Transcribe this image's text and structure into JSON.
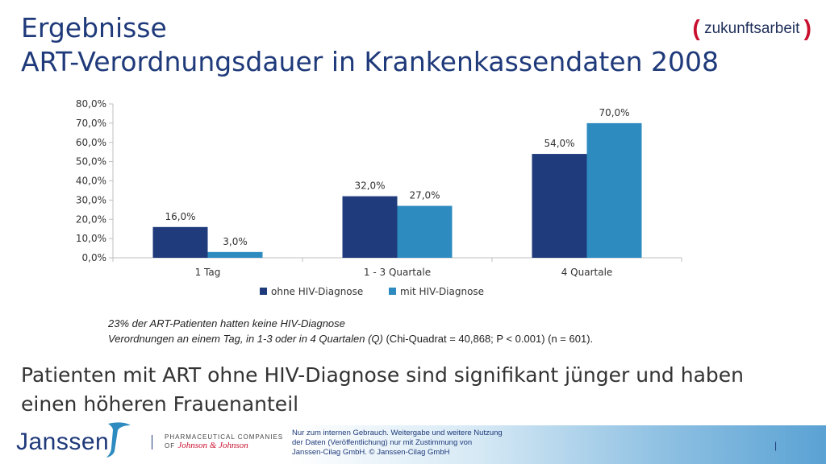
{
  "header": {
    "title_line1": "Ergebnisse",
    "title_line2": "ART-Verordnungsdauer in Krankenkassendaten 2008"
  },
  "logo": {
    "open": "(",
    "text": "zukunftsarbeit",
    "close": ")"
  },
  "chart_data": {
    "type": "bar",
    "categories": [
      "1 Tag",
      "1 - 3 Quartale",
      "4 Quartale"
    ],
    "series": [
      {
        "name": "ohne HIV-Diagnose",
        "values": [
          16.0,
          32.0,
          54.0
        ],
        "color": "#1f3b7c"
      },
      {
        "name": "mit HIV-Diagnose",
        "values": [
          3.0,
          27.0,
          70.0
        ],
        "color": "#2e8bc0"
      }
    ],
    "data_labels": [
      [
        "16,0%",
        "32,0%",
        "54,0%"
      ],
      [
        "3,0%",
        "27,0%",
        "70,0%"
      ]
    ],
    "yticks": [
      "0,0%",
      "10,0%",
      "20,0%",
      "30,0%",
      "40,0%",
      "50,0%",
      "60,0%",
      "70,0%",
      "80,0%"
    ],
    "ylim": [
      0,
      80
    ],
    "legend_position": "bottom",
    "grid": false
  },
  "note": {
    "line1": "23% der ART-Patienten hatten keine HIV-Diagnose",
    "line2_italic": "Verordnungen an einem Tag, in 1-3 oder in 4 Quartalen (Q)",
    "line2_rest": " (Chi-Quadrat = 40,868; P < 0.001) (n = 601)."
  },
  "conclusion": "Patienten mit ART ohne HIV-Diagnose sind signifikant jünger und haben einen höheren Frauenanteil",
  "footer": {
    "brand": "Janssen",
    "pharma_line1": "PHARMACEUTICAL COMPANIES",
    "pharma_of": "OF ",
    "pharma_jj": "Johnson & Johnson",
    "disclaimer_line1": "Nur zum internen Gebrauch. Weitergabe und weitere Nutzung",
    "disclaimer_line2": "der Daten (Veröffentlichung) nur mit Zustimmung von",
    "disclaimer_line3": "Janssen-Cilag GmbH. © Janssen-Cilag GmbH",
    "page": "|"
  }
}
